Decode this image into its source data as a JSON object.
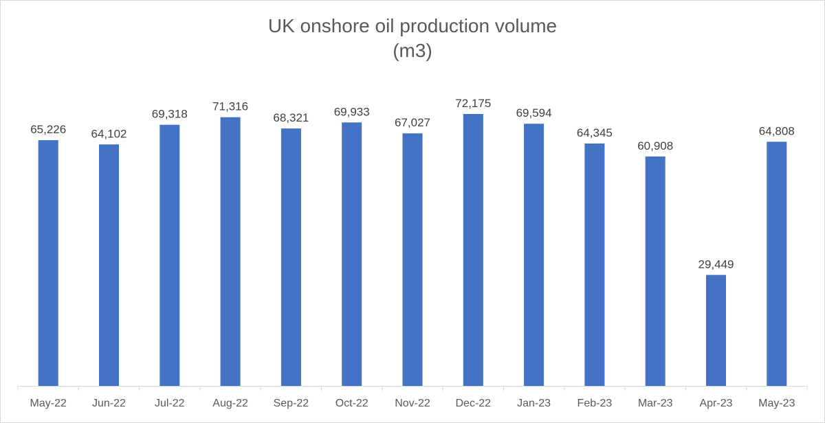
{
  "chart_data": {
    "type": "bar",
    "title": "UK onshore oil production volume",
    "subtitle": "(m3)",
    "categories": [
      "May-22",
      "Jun-22",
      "Jul-22",
      "Aug-22",
      "Sep-22",
      "Oct-22",
      "Nov-22",
      "Dec-22",
      "Jan-23",
      "Feb-23",
      "Mar-23",
      "Apr-23",
      "May-23"
    ],
    "values": [
      65226,
      64102,
      69318,
      71316,
      68321,
      69933,
      67027,
      72175,
      69594,
      64345,
      60908,
      29449,
      64808
    ],
    "value_labels": [
      "65,226",
      "64,102",
      "69,318",
      "71,316",
      "68,321",
      "69,933",
      "67,027",
      "72,175",
      "69,594",
      "64,345",
      "60,908",
      "29,449",
      "64,808"
    ],
    "ylim": [
      0,
      80000
    ],
    "bar_color": "#4472c4",
    "grid": false,
    "legend": "none",
    "xlabel": "",
    "ylabel": ""
  }
}
